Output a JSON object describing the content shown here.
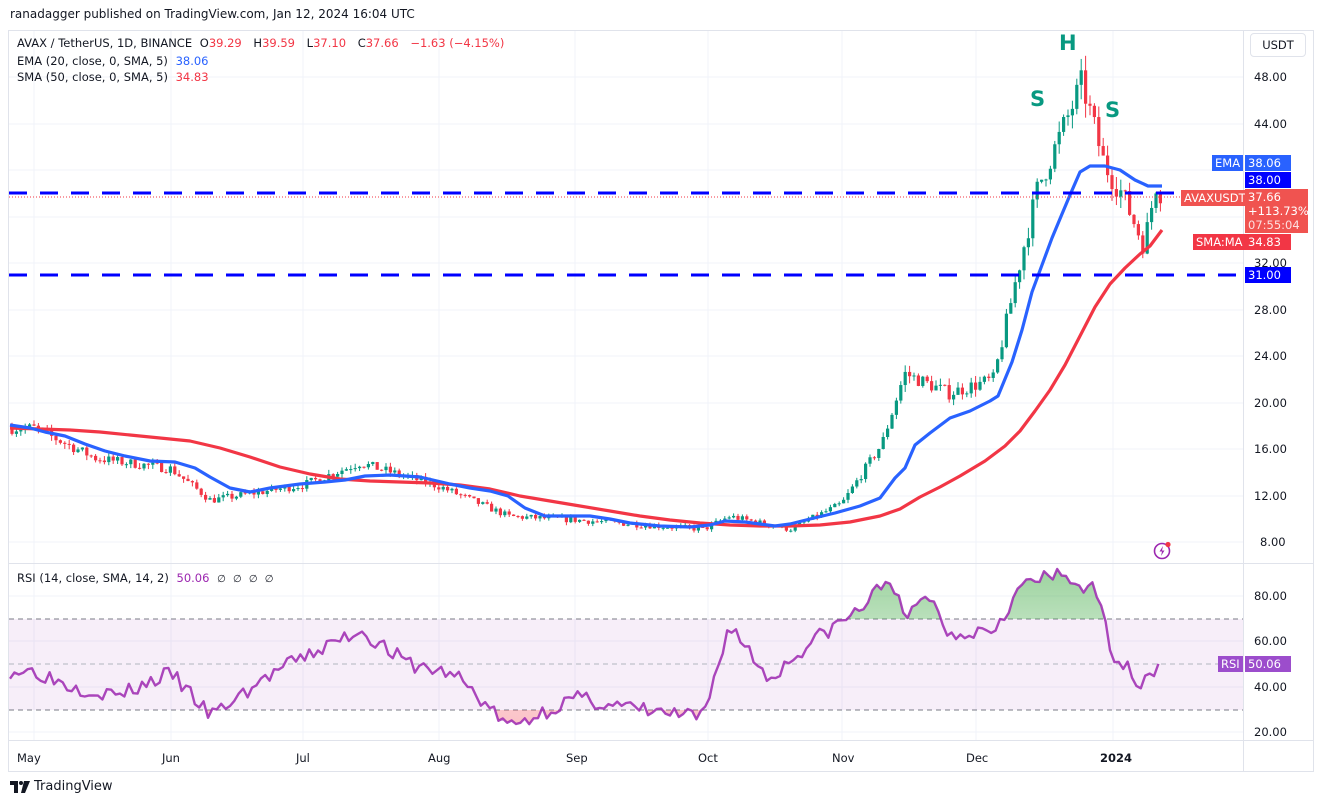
{
  "publisher_line": "ranadagger published on TradingView.com, Jan 12, 2024 16:04 UTC",
  "symbol_legend": {
    "symbol": "AVAX / TetherUS, 1D, BINANCE",
    "open_label": "O",
    "open": "39.29",
    "high_label": "H",
    "high": "39.59",
    "low_label": "L",
    "low": "37.10",
    "close_label": "C",
    "close": "37.66",
    "change": "−1.63 (−4.15%)"
  },
  "indicators": {
    "ema": {
      "label": "EMA (20, close, 0, SMA, 5)",
      "value": "38.06",
      "color": "#2962ff"
    },
    "sma": {
      "label": "SMA (50, close, 0, SMA, 5)",
      "value": "34.83",
      "color": "#f23645"
    },
    "rsi": {
      "label": "RSI (14, close, SMA, 14, 2)",
      "value": "50.06",
      "extras": "∅ ∅ ∅ ∅",
      "color": "#9c27b0"
    }
  },
  "price_axis": {
    "currency_button": "USDT",
    "ticks": [
      "48.00",
      "44.00",
      "32.00",
      "28.00",
      "24.00",
      "20.00",
      "16.00",
      "12.00",
      "8.00"
    ],
    "tags": {
      "ema_name": "EMA",
      "ema_value": "38.06",
      "level_upper": "38.00",
      "symbol_name": "AVAXUSDT",
      "price": "37.66",
      "pct": "+113.73%",
      "countdown": "07:55:04",
      "sma_name": "SMA:MA",
      "sma_value": "34.83",
      "level_lower": "31.00"
    }
  },
  "rsi_axis": {
    "ticks": [
      "80.00",
      "60.00",
      "40.00",
      "20.00"
    ],
    "tag_name": "RSI",
    "tag_value": "50.06"
  },
  "time_axis": [
    "May",
    "Jun",
    "Jul",
    "Aug",
    "Sep",
    "Oct",
    "Nov",
    "Dec",
    "2024"
  ],
  "annotations": {
    "left_shoulder": "S",
    "head": "H",
    "right_shoulder": "S"
  },
  "branding": "TradingView",
  "colors": {
    "up": "#089981",
    "down": "#f23645",
    "ema": "#2962ff",
    "sma": "#f23645",
    "level_line": "#0000ff",
    "rsi": "#9c27b0",
    "rsi_band": "#ede7f6"
  },
  "chart_data": [
    {
      "type": "candlestick",
      "title": "AVAX / TetherUS, 1D, BINANCE",
      "xlabel": "",
      "ylabel": "USDT",
      "ylim": [
        6.5,
        50
      ],
      "x_ticks": [
        "May",
        "Jun",
        "Jul",
        "Aug",
        "Sep",
        "Oct",
        "Nov",
        "Dec",
        "2024"
      ],
      "y_ticks": [
        8,
        12,
        16,
        20,
        24,
        28,
        32,
        36,
        40,
        44,
        48
      ],
      "grid": true,
      "last": {
        "open": 39.29,
        "high": 39.59,
        "low": 37.1,
        "close": 37.66,
        "change": -1.63,
        "change_pct": -4.15
      },
      "approx_close_path": [
        {
          "x": "May 1",
          "close": 17.8
        },
        {
          "x": "May 15",
          "close": 15.2
        },
        {
          "x": "Jun 1",
          "close": 14.3
        },
        {
          "x": "Jun 10",
          "close": 11.6
        },
        {
          "x": "Jul 1",
          "close": 12.9
        },
        {
          "x": "Jul 14",
          "close": 14.8
        },
        {
          "x": "Aug 1",
          "close": 12.8
        },
        {
          "x": "Aug 17",
          "close": 10.2
        },
        {
          "x": "Sep 1",
          "close": 9.9
        },
        {
          "x": "Sep 30",
          "close": 9.1
        },
        {
          "x": "Oct 6",
          "close": 10.2
        },
        {
          "x": "Oct 20",
          "close": 9.1
        },
        {
          "x": "Nov 1",
          "close": 11.3
        },
        {
          "x": "Nov 10",
          "close": 16.5
        },
        {
          "x": "Nov 15",
          "close": 22.5
        },
        {
          "x": "Nov 25",
          "close": 20.8
        },
        {
          "x": "Dec 5",
          "close": 22.0
        },
        {
          "x": "Dec 10",
          "close": 30.5
        },
        {
          "x": "Dec 15",
          "close": 38.5
        },
        {
          "x": "Dec 19",
          "close": 42.0
        },
        {
          "x": "Dec 25",
          "close": 47.5
        },
        {
          "x": "Dec 30",
          "close": 40.5
        },
        {
          "x": "Jan 3",
          "close": 38.0
        },
        {
          "x": "Jan 8",
          "close": 33.5
        },
        {
          "x": "Jan 11",
          "close": 39.3
        },
        {
          "x": "Jan 12",
          "close": 37.66
        }
      ],
      "series": [
        {
          "name": "EMA 20",
          "last": 38.06,
          "color": "#2962ff"
        },
        {
          "name": "SMA 50",
          "last": 34.83,
          "color": "#f23645"
        }
      ],
      "horizontal_levels": [
        38.0,
        31.0
      ],
      "annotations": [
        {
          "text": "S",
          "x": "Dec 17",
          "y": 45.8
        },
        {
          "text": "H",
          "x": "Dec 24",
          "y": 50.5
        },
        {
          "text": "S",
          "x": "Jan 2",
          "y": 43.3
        }
      ]
    },
    {
      "type": "line",
      "title": "RSI (14, close, SMA, 14, 2)",
      "ylim": [
        15,
        95
      ],
      "y_ticks": [
        20,
        40,
        60,
        80
      ],
      "bands": {
        "upper": 70,
        "middle": 50,
        "lower": 30
      },
      "last": 50.06,
      "approx_values": [
        {
          "x": "May 1",
          "v": 47
        },
        {
          "x": "May 10",
          "v": 40
        },
        {
          "x": "May 20",
          "v": 36
        },
        {
          "x": "Jun 1",
          "v": 46
        },
        {
          "x": "Jun 10",
          "v": 27
        },
        {
          "x": "Jun 25",
          "v": 47
        },
        {
          "x": "Jul 14",
          "v": 65
        },
        {
          "x": "Jul 25",
          "v": 50
        },
        {
          "x": "Aug 5",
          "v": 45
        },
        {
          "x": "Aug 17",
          "v": 22
        },
        {
          "x": "Sep 1",
          "v": 35
        },
        {
          "x": "Sep 15",
          "v": 30
        },
        {
          "x": "Sep 30",
          "v": 26
        },
        {
          "x": "Oct 6",
          "v": 68
        },
        {
          "x": "Oct 15",
          "v": 43
        },
        {
          "x": "Oct 25",
          "v": 60
        },
        {
          "x": "Nov 5",
          "v": 74
        },
        {
          "x": "Nov 12",
          "v": 89
        },
        {
          "x": "Nov 15",
          "v": 68
        },
        {
          "x": "Nov 20",
          "v": 82
        },
        {
          "x": "Nov 25",
          "v": 63
        },
        {
          "x": "Dec 5",
          "v": 66
        },
        {
          "x": "Dec 12",
          "v": 86
        },
        {
          "x": "Dec 20",
          "v": 89
        },
        {
          "x": "Dec 28",
          "v": 82
        },
        {
          "x": "Jan 1",
          "v": 55
        },
        {
          "x": "Jan 7",
          "v": 42
        },
        {
          "x": "Jan 12",
          "v": 50.06
        }
      ]
    }
  ]
}
